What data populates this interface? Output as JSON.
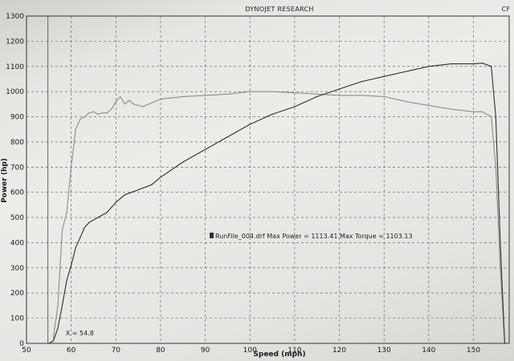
{
  "header": {
    "title": "DYNOJET RESEARCH",
    "corner_label": "CF"
  },
  "chart_data": {
    "type": "line",
    "xlabel": "Speed (mph)",
    "ylabel": "Power (hp)",
    "xlim": [
      50,
      158
    ],
    "ylim": [
      0,
      1300
    ],
    "x_ticks": [
      50,
      60,
      70,
      80,
      90,
      100,
      110,
      120,
      130,
      140,
      150
    ],
    "y_ticks": [
      0,
      100,
      200,
      300,
      400,
      500,
      600,
      700,
      800,
      900,
      1000,
      1100,
      1200,
      1300
    ],
    "grid": true,
    "annotation": "RunFile_004.drf Max Power = 1113.41    Max Torque = 1103.13",
    "marker_label": "X = 54.8",
    "series": [
      {
        "color": "#8c8c88",
        "x": [
          56,
          57,
          58,
          59,
          60,
          61,
          62,
          63,
          64,
          65,
          66,
          67,
          68,
          69,
          70,
          71,
          72,
          73,
          74,
          75,
          76,
          78,
          80,
          85,
          90,
          95,
          100,
          105,
          110,
          115,
          120,
          125,
          130,
          135,
          140,
          145,
          150,
          152,
          154,
          155,
          156,
          157
        ],
        "y": [
          20,
          150,
          450,
          520,
          700,
          850,
          890,
          900,
          915,
          920,
          910,
          915,
          915,
          930,
          960,
          980,
          950,
          965,
          950,
          945,
          940,
          955,
          970,
          980,
          985,
          990,
          1000,
          1000,
          995,
          990,
          985,
          985,
          980,
          960,
          945,
          930,
          920,
          920,
          900,
          700,
          300,
          0
        ]
      },
      {
        "color": "#2e2e2c",
        "x": [
          55,
          56,
          57,
          58,
          59,
          60,
          61,
          62,
          63,
          64,
          65,
          66,
          67,
          68,
          70,
          72,
          75,
          78,
          80,
          85,
          90,
          95,
          100,
          105,
          110,
          115,
          120,
          125,
          130,
          135,
          140,
          145,
          150,
          152,
          154,
          155,
          156,
          157
        ],
        "y": [
          0,
          10,
          60,
          150,
          250,
          310,
          380,
          420,
          460,
          480,
          490,
          500,
          510,
          520,
          560,
          590,
          610,
          630,
          660,
          720,
          770,
          820,
          870,
          910,
          940,
          980,
          1010,
          1040,
          1060,
          1080,
          1100,
          1110,
          1110,
          1113,
          1100,
          900,
          400,
          0
        ]
      }
    ]
  }
}
